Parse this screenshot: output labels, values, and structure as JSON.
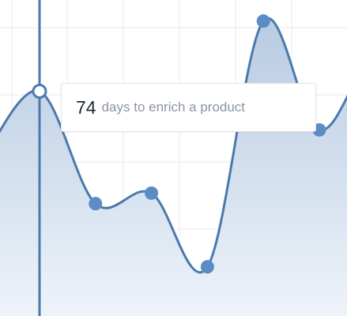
{
  "chart_data": {
    "type": "area",
    "x": [
      0,
      1,
      2,
      3,
      4,
      5,
      6
    ],
    "values": [
      74,
      42,
      45,
      24,
      94,
      63,
      84
    ],
    "ylim": [
      10,
      100
    ],
    "grid": true,
    "highlight_index": 0,
    "colors": {
      "line": "#4a7aad",
      "area_top": "#b7cbe3",
      "area_bottom": "#eef3f9",
      "point": "#5b8cc4",
      "grid": "#e8e8e8",
      "cursor": "#4a7aad"
    }
  },
  "tooltip": {
    "value": "74",
    "label": "days to enrich a product"
  }
}
